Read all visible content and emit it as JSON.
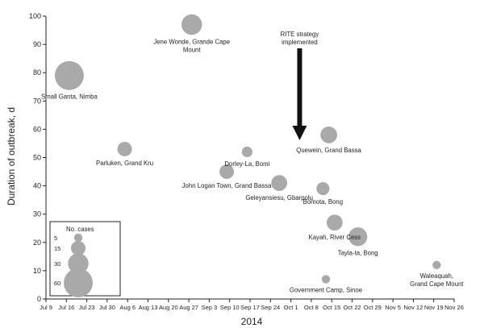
{
  "chart_data": {
    "type": "scatter",
    "xlabel": "2014",
    "ylabel": "Duration of outbreak, d",
    "ylim": [
      0,
      100
    ],
    "yticks": [
      0,
      10,
      20,
      30,
      40,
      50,
      60,
      70,
      80,
      90,
      100
    ],
    "xlim": [
      "2014-07-09",
      "2014-11-26"
    ],
    "xticks": [
      "2014-07-09",
      "2014-07-16",
      "2014-07-23",
      "2014-07-30",
      "2014-08-06",
      "2014-08-13",
      "2014-08-20",
      "2014-08-27",
      "2014-09-03",
      "2014-09-10",
      "2014-09-17",
      "2014-09-24",
      "2014-10-01",
      "2014-10-08",
      "2014-10-15",
      "2014-10-22",
      "2014-10-29",
      "2014-11-05",
      "2014-11-12",
      "2014-11-19",
      "2014-11-26"
    ],
    "xtick_labels": [
      "Jul 9",
      "Jul 16",
      "Jul 23",
      "Jul 30",
      "Aug 6",
      "Aug 13",
      "Aug 20",
      "Aug 27",
      "Sep 3",
      "Sep 10",
      "Sep 17",
      "Sep 24",
      "Oct 1",
      "Oct 8",
      "Oct 15",
      "Oct 22",
      "Oct 29",
      "Nov 5",
      "Nov 12",
      "Nov 19",
      "Nov 26"
    ],
    "grid": false,
    "color": "#a9a9a9",
    "points": [
      {
        "label": "Small Ganta, Nimba",
        "x": "2014-07-17",
        "y": 79,
        "cases": 60,
        "label_lines": [
          "Small Ganta, Nimba"
        ]
      },
      {
        "label": "Jene Wonde, Grande Cape Mount",
        "x": "2014-08-28",
        "y": 97,
        "cases": 30,
        "label_lines": [
          "Jene Wonde, Grande Cape",
          "Mount"
        ]
      },
      {
        "label": "Parluken, Grand Kru",
        "x": "2014-08-05",
        "y": 53,
        "cases": 15,
        "label_lines": [
          "Parluken, Grand Kru"
        ]
      },
      {
        "label": "Dorley-La, Bomi",
        "x": "2014-09-16",
        "y": 52,
        "cases": 8,
        "label_lines": [
          "Dorley-La, Bomi"
        ]
      },
      {
        "label": "John Logan Town, Grand Bassa",
        "x": "2014-09-09",
        "y": 45,
        "cases": 15,
        "label_lines": [
          "John Logan Town, Grand Bassa"
        ]
      },
      {
        "label": "Geleyansiesu, Gbarpolu",
        "x": "2014-09-27",
        "y": 41,
        "cases": 18,
        "label_lines": [
          "Geleyansiesu, Gbarpolu"
        ]
      },
      {
        "label": "Quewein, Grand Bassa",
        "x": "2014-10-14",
        "y": 58,
        "cases": 20,
        "label_lines": [
          "Quewein, Grand Bassa"
        ]
      },
      {
        "label": "Bomota, Bong",
        "x": "2014-10-12",
        "y": 39,
        "cases": 12,
        "label_lines": [
          "Bomota, Bong"
        ]
      },
      {
        "label": "Kayah, River Cess",
        "x": "2014-10-16",
        "y": 27,
        "cases": 18,
        "label_lines": [
          "Kayah, River Cess"
        ]
      },
      {
        "label": "Tayla-ta, Bong",
        "x": "2014-10-24",
        "y": 22,
        "cases": 25,
        "label_lines": [
          "Tayla-ta, Bong"
        ]
      },
      {
        "label": "Government Camp, Sinoe",
        "x": "2014-10-13",
        "y": 7,
        "cases": 5,
        "label_lines": [
          "Government Camp, Sinoe"
        ]
      },
      {
        "label": "Waleaquah, Grand Cape Mount",
        "x": "2014-11-20",
        "y": 12,
        "cases": 5,
        "label_lines": [
          "Waleaquah,",
          "Grand Cape Mount"
        ]
      }
    ],
    "annotation": {
      "text_lines": [
        "RITE strategy",
        "implemented"
      ],
      "x": "2014-10-04"
    },
    "legend": {
      "title": "No. cases",
      "position": "bottom-left",
      "entries": [
        5,
        15,
        30,
        60
      ]
    }
  }
}
